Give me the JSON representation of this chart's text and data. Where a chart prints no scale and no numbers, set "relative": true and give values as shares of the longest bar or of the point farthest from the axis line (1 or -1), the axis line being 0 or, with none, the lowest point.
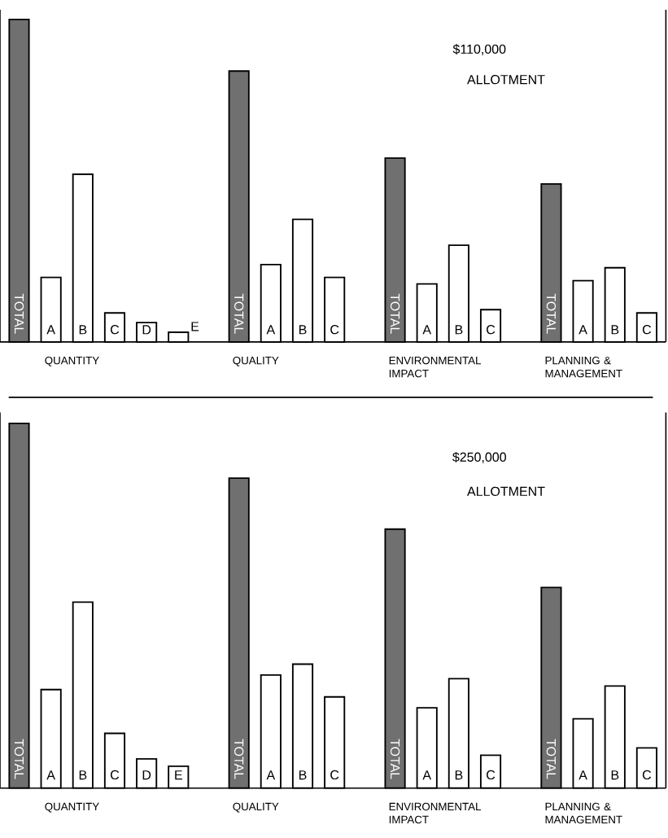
{
  "chart_data": [
    {
      "type": "bar",
      "relative": true,
      "title": "$110,000",
      "subtitle": "ALLOTMENT",
      "categories": [
        "TOTAL",
        "A",
        "B",
        "C",
        "D",
        "E",
        "TOTAL",
        "A",
        "B",
        "C",
        "TOTAL",
        "A",
        "B",
        "C",
        "TOTAL",
        "A",
        "B",
        "C"
      ],
      "values": [
        1,
        0.2,
        0.52,
        0.09,
        0.06,
        0.03,
        0.84,
        0.24,
        0.38,
        0.2,
        0.57,
        0.18,
        0.3,
        0.1,
        0.49,
        0.19,
        0.23,
        0.09
      ],
      "colors": [
        "#707070",
        "#ffffff",
        "#ffffff",
        "#ffffff",
        "#ffffff",
        "#ffffff",
        "#707070",
        "#ffffff",
        "#ffffff",
        "#ffffff",
        "#707070",
        "#ffffff",
        "#ffffff",
        "#ffffff",
        "#707070",
        "#ffffff",
        "#ffffff",
        "#ffffff"
      ],
      "annotations": [
        "QUANTITY",
        "QUALITY",
        "ENVIRONMENTAL IMPACT",
        "PLANNING & MANAGEMENT"
      ]
    },
    {
      "type": "bar",
      "relative": true,
      "title": "$250,000",
      "subtitle": "ALLOTMENT",
      "categories": [
        "TOTAL",
        "A",
        "B",
        "C",
        "D",
        "E",
        "TOTAL",
        "A",
        "B",
        "C",
        "TOTAL",
        "A",
        "B",
        "C",
        "TOTAL",
        "A",
        "B",
        "C"
      ],
      "values": [
        1,
        0.27,
        0.51,
        0.15,
        0.08,
        0.06,
        0.85,
        0.31,
        0.34,
        0.25,
        0.71,
        0.22,
        0.3,
        0.09,
        0.55,
        0.19,
        0.28,
        0.11
      ],
      "colors": [
        "#707070",
        "#ffffff",
        "#ffffff",
        "#ffffff",
        "#ffffff",
        "#ffffff",
        "#707070",
        "#ffffff",
        "#ffffff",
        "#ffffff",
        "#707070",
        "#ffffff",
        "#ffffff",
        "#ffffff",
        "#707070",
        "#ffffff",
        "#ffffff",
        "#ffffff"
      ],
      "annotations": [
        "QUANTITY",
        "QUALITY",
        "ENVIRONMENTAL IMPACT",
        "PLANNING & MANAGEMENT"
      ]
    }
  ]
}
